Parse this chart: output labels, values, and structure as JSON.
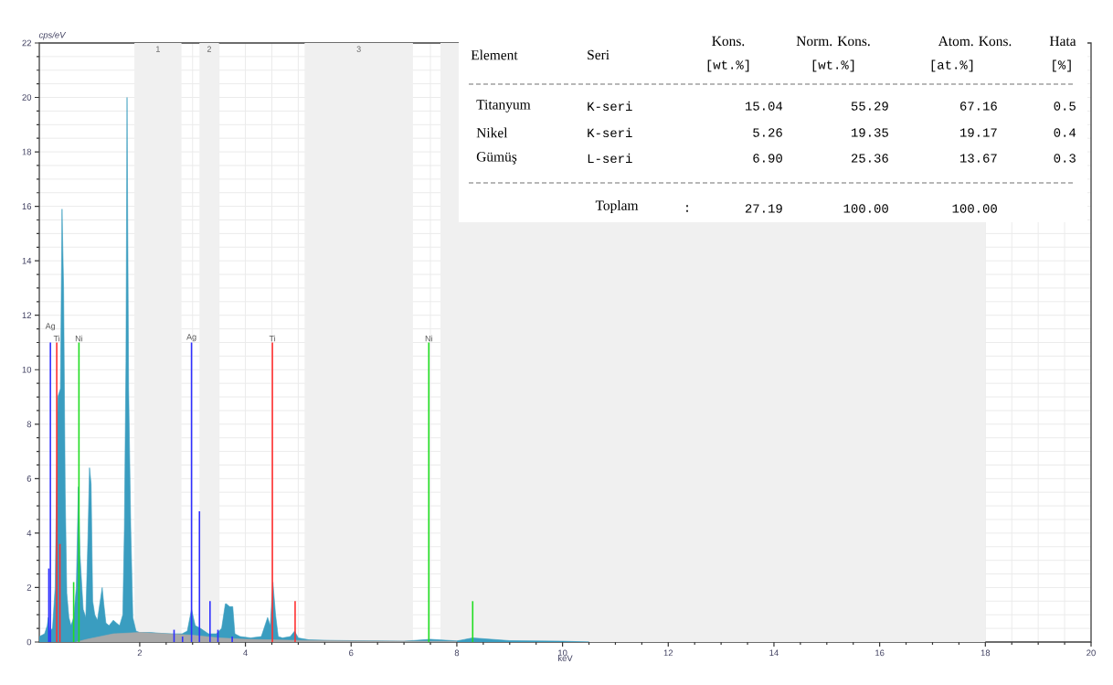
{
  "chart_data": {
    "type": "area",
    "xlabel": "keV",
    "ylabel": "cps/eV",
    "xlim": [
      0.1,
      20
    ],
    "ylim": [
      0,
      22
    ],
    "xticks": [
      2,
      4,
      6,
      8,
      10,
      12,
      14,
      16,
      18,
      20
    ],
    "yticks": [
      0,
      2,
      4,
      6,
      8,
      10,
      12,
      14,
      16,
      18,
      20,
      22
    ],
    "grid": true,
    "bands": [
      {
        "axis": "x",
        "from": 1.9,
        "to": 2.79,
        "label": "1",
        "color": "#f0f0f0"
      },
      {
        "axis": "x",
        "from": 3.13,
        "to": 3.5,
        "label": "2",
        "color": "#f0f0f0"
      },
      {
        "axis": "x",
        "from": 5.12,
        "to": 7.17,
        "label": "3",
        "color": "#f0f0f0"
      },
      {
        "axis": "x",
        "from": 7.69,
        "to": 18,
        "color": "#f0f0f0"
      }
    ],
    "series": [
      {
        "color": "#3a9dc0",
        "x": [
          0.1,
          0.2,
          0.25,
          0.27,
          0.3,
          0.35,
          0.4,
          0.45,
          0.5,
          0.53,
          0.56,
          0.59,
          0.62,
          0.66,
          0.7,
          0.75,
          0.8,
          0.84,
          0.87,
          0.93,
          0.98,
          1.02,
          1.05,
          1.08,
          1.11,
          1.15,
          1.2,
          1.26,
          1.29,
          1.32,
          1.36,
          1.42,
          1.5,
          1.56,
          1.62,
          1.68,
          1.71,
          1.74,
          1.76,
          1.79,
          1.83,
          1.87,
          1.93,
          2.0,
          2.2,
          2.4,
          2.6,
          2.8,
          2.9,
          2.98,
          3.05,
          3.15,
          3.3,
          3.45,
          3.55,
          3.62,
          3.64,
          3.7,
          3.76,
          3.8,
          3.9,
          4.1,
          4.3,
          4.42,
          4.47,
          4.52,
          4.57,
          4.62,
          4.7,
          4.85,
          4.93,
          5.0,
          5.2,
          5.6,
          6.0,
          7.0,
          7.5,
          8.0,
          8.3,
          9.0,
          10.0,
          10.5
        ],
        "values": [
          0.2,
          0.3,
          0.6,
          0.9,
          0.4,
          0.5,
          2.0,
          9.0,
          9.3,
          15.9,
          13.0,
          5.5,
          1.8,
          0.9,
          0.6,
          0.9,
          2.0,
          5.7,
          3.2,
          1.2,
          0.9,
          3.8,
          6.4,
          5.8,
          1.5,
          1.0,
          0.8,
          1.6,
          2.0,
          1.4,
          0.7,
          0.6,
          0.8,
          0.7,
          0.6,
          1.0,
          4.2,
          10.3,
          20.0,
          9.3,
          4.2,
          0.9,
          0.4,
          0.35,
          0.35,
          0.32,
          0.3,
          0.3,
          0.4,
          1.2,
          0.6,
          0.5,
          0.3,
          0.3,
          0.5,
          1.4,
          1.4,
          1.3,
          1.3,
          0.3,
          0.2,
          0.15,
          0.2,
          0.9,
          0.6,
          2.2,
          1.0,
          0.2,
          0.15,
          0.2,
          0.4,
          0.15,
          0.08,
          0.06,
          0.05,
          0.03,
          0.1,
          0.04,
          0.15,
          0.05,
          0.03,
          0
        ]
      },
      {
        "type": "area",
        "color": "#a8a8a8",
        "x": [
          0.8,
          1.0,
          1.5,
          2.0,
          2.5,
          3.0,
          3.5,
          4.0,
          4.5,
          5.0,
          6.0,
          8.0
        ],
        "values": [
          0,
          0.1,
          0.3,
          0.35,
          0.3,
          0.25,
          0.15,
          0.1,
          0.08,
          0.06,
          0.04,
          0.02
        ]
      },
      {
        "type": "bar",
        "color": "#3030ff",
        "x": [
          0.28,
          0.31,
          2.65,
          2.81,
          2.98,
          3.13,
          3.33,
          3.48,
          3.75
        ],
        "values": [
          2.7,
          11,
          0.45,
          0.2,
          11,
          4.8,
          1.5,
          0.45,
          0.2
        ]
      },
      {
        "type": "bar",
        "color": "#ff3030",
        "x": [
          0.43,
          0.49,
          4.51,
          4.94
        ],
        "values": [
          11,
          3.6,
          11,
          1.5
        ]
      },
      {
        "type": "bar",
        "color": "#22dd22",
        "x": [
          0.75,
          0.85,
          7.47,
          8.3
        ],
        "values": [
          2.2,
          11,
          11,
          1.5
        ]
      }
    ],
    "annotations": [
      {
        "text": "Ag",
        "x": 0.31,
        "y": 11
      },
      {
        "text": "Ti",
        "x": 0.43,
        "y": 11
      },
      {
        "text": "Ni",
        "x": 0.85,
        "y": 11
      },
      {
        "text": "Ag",
        "x": 2.98,
        "y": 11
      },
      {
        "text": "Ti",
        "x": 4.51,
        "y": 11
      },
      {
        "text": "Ni",
        "x": 7.47,
        "y": 11
      },
      "Element",
      "Seri",
      "Kons.",
      "[wt.%]",
      "Norm. Kons.",
      "[wt.%]",
      "Atom. Kons.",
      "[at.%]",
      "Hata",
      "[%]",
      "Titanyum",
      "K-seri",
      "15.04",
      "55.29",
      "67.16",
      "0.5",
      "Nikel",
      "K-seri",
      "5.26",
      "19.35",
      "19.17",
      "0.4",
      "Gümüş",
      "L-seri",
      "6.90",
      "25.36",
      "13.67",
      "0.3",
      "Toplam",
      ":",
      "27.19",
      "100.00",
      "100.00"
    ]
  }
}
